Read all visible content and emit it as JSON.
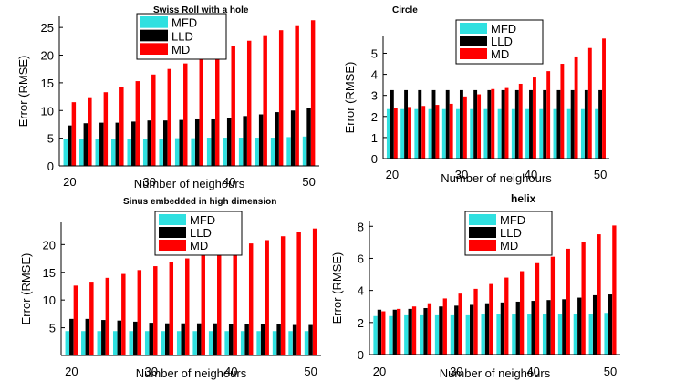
{
  "chart_data": [
    {
      "type": "bar",
      "title": "Swiss Roll with a hole",
      "xlabel": "Number of neighours",
      "ylabel": "Error (RMSE)",
      "categories": [
        20,
        22,
        24,
        26,
        28,
        30,
        32,
        34,
        36,
        38,
        40,
        42,
        44,
        46,
        48,
        50
      ],
      "xticks": [
        20,
        30,
        40,
        50
      ],
      "yticks": [
        0,
        5,
        10,
        15,
        20,
        25
      ],
      "ylim": [
        0,
        27
      ],
      "legend": {
        "position": "top-center",
        "entries": [
          "MFD",
          "LLD",
          "MD"
        ]
      },
      "series": [
        {
          "name": "MFD",
          "color": "#2fe0e0",
          "values": [
            4.9,
            4.9,
            4.9,
            4.9,
            4.9,
            4.9,
            4.9,
            5.0,
            5.0,
            5.1,
            5.1,
            5.1,
            5.1,
            5.1,
            5.2,
            5.3
          ]
        },
        {
          "name": "LLD",
          "color": "#000000",
          "values": [
            7.3,
            7.7,
            7.8,
            7.8,
            8.0,
            8.2,
            8.2,
            8.3,
            8.4,
            8.4,
            8.6,
            9.0,
            9.3,
            9.7,
            10.0,
            10.5
          ]
        },
        {
          "name": "MD",
          "color": "#ff0000",
          "values": [
            11.5,
            12.4,
            13.3,
            14.3,
            15.3,
            16.5,
            17.5,
            18.5,
            19.5,
            20.5,
            21.6,
            22.6,
            23.6,
            24.5,
            25.4,
            26.3
          ]
        }
      ]
    },
    {
      "type": "bar",
      "title": "Circle",
      "xlabel": "Number of neighours",
      "ylabel": "Error (RMSE)",
      "categories": [
        20,
        22,
        24,
        26,
        28,
        30,
        32,
        34,
        36,
        38,
        40,
        42,
        44,
        46,
        48,
        50
      ],
      "xticks": [
        20,
        30,
        40,
        50
      ],
      "yticks": [
        0,
        1,
        2,
        3,
        4,
        5
      ],
      "ylim": [
        0,
        5.8
      ],
      "legend": {
        "position": "top-center",
        "entries": [
          "MFD",
          "LLD",
          "MD"
        ]
      },
      "series": [
        {
          "name": "MFD",
          "color": "#2fe0e0",
          "values": [
            2.35,
            2.35,
            2.35,
            2.35,
            2.35,
            2.35,
            2.35,
            2.35,
            2.35,
            2.35,
            2.35,
            2.35,
            2.35,
            2.35,
            2.35,
            2.35
          ]
        },
        {
          "name": "LLD",
          "color": "#000000",
          "values": [
            3.25,
            3.25,
            3.25,
            3.25,
            3.25,
            3.25,
            3.25,
            3.25,
            3.25,
            3.25,
            3.25,
            3.25,
            3.25,
            3.25,
            3.25,
            3.25
          ]
        },
        {
          "name": "MD",
          "color": "#ff0000",
          "values": [
            2.4,
            2.45,
            2.5,
            2.55,
            2.6,
            2.95,
            3.05,
            3.3,
            3.35,
            3.55,
            3.85,
            4.15,
            4.5,
            4.85,
            5.25,
            5.7
          ]
        }
      ]
    },
    {
      "type": "bar",
      "title": "Sinus embedded in high dimension",
      "xlabel": "Number of neighours",
      "ylabel": "Error (RMSE)",
      "categories": [
        20,
        22,
        24,
        26,
        28,
        30,
        32,
        34,
        36,
        38,
        40,
        42,
        44,
        46,
        48,
        50
      ],
      "xticks": [
        20,
        30,
        40,
        50
      ],
      "yticks": [
        5,
        10,
        15,
        20
      ],
      "ylim": [
        0,
        24
      ],
      "legend": {
        "position": "top-center",
        "entries": [
          "MFD",
          "LLD",
          "MD"
        ]
      },
      "series": [
        {
          "name": "MFD",
          "color": "#2fe0e0",
          "values": [
            4.4,
            4.4,
            4.4,
            4.4,
            4.4,
            4.4,
            4.4,
            4.4,
            4.4,
            4.4,
            4.4,
            4.4,
            4.4,
            4.4,
            4.4,
            4.4
          ]
        },
        {
          "name": "LLD",
          "color": "#000000",
          "values": [
            6.6,
            6.6,
            6.4,
            6.3,
            6.1,
            5.9,
            5.8,
            5.8,
            5.8,
            5.8,
            5.7,
            5.7,
            5.6,
            5.6,
            5.5,
            5.5
          ]
        },
        {
          "name": "MD",
          "color": "#ff0000",
          "values": [
            12.6,
            13.3,
            14.0,
            14.7,
            15.4,
            16.1,
            16.8,
            17.5,
            18.2,
            18.9,
            19.6,
            20.2,
            20.8,
            21.5,
            22.2,
            22.9
          ]
        }
      ]
    },
    {
      "type": "bar",
      "title": "helix",
      "xlabel": "Number of neighours",
      "ylabel": "Error (RMSE)",
      "categories": [
        20,
        22,
        24,
        26,
        28,
        30,
        32,
        34,
        36,
        38,
        40,
        42,
        44,
        46,
        48,
        50
      ],
      "xticks": [
        20,
        30,
        40,
        50
      ],
      "yticks": [
        0,
        2,
        4,
        6,
        8
      ],
      "ylim": [
        0,
        8.3
      ],
      "legend": {
        "position": "top-center",
        "entries": [
          "MFD",
          "LLD",
          "MD"
        ]
      },
      "series": [
        {
          "name": "MFD",
          "color": "#2fe0e0",
          "values": [
            2.4,
            2.4,
            2.45,
            2.45,
            2.45,
            2.45,
            2.45,
            2.5,
            2.5,
            2.5,
            2.5,
            2.5,
            2.5,
            2.55,
            2.55,
            2.6
          ]
        },
        {
          "name": "LLD",
          "color": "#000000",
          "values": [
            2.8,
            2.8,
            2.85,
            2.9,
            3.0,
            3.05,
            3.1,
            3.2,
            3.25,
            3.3,
            3.35,
            3.4,
            3.45,
            3.55,
            3.7,
            3.75
          ]
        },
        {
          "name": "MD",
          "color": "#ff0000",
          "values": [
            2.7,
            2.85,
            3.0,
            3.2,
            3.5,
            3.8,
            4.1,
            4.4,
            4.8,
            5.2,
            5.7,
            6.1,
            6.6,
            7.0,
            7.5,
            8.05
          ]
        }
      ]
    }
  ]
}
